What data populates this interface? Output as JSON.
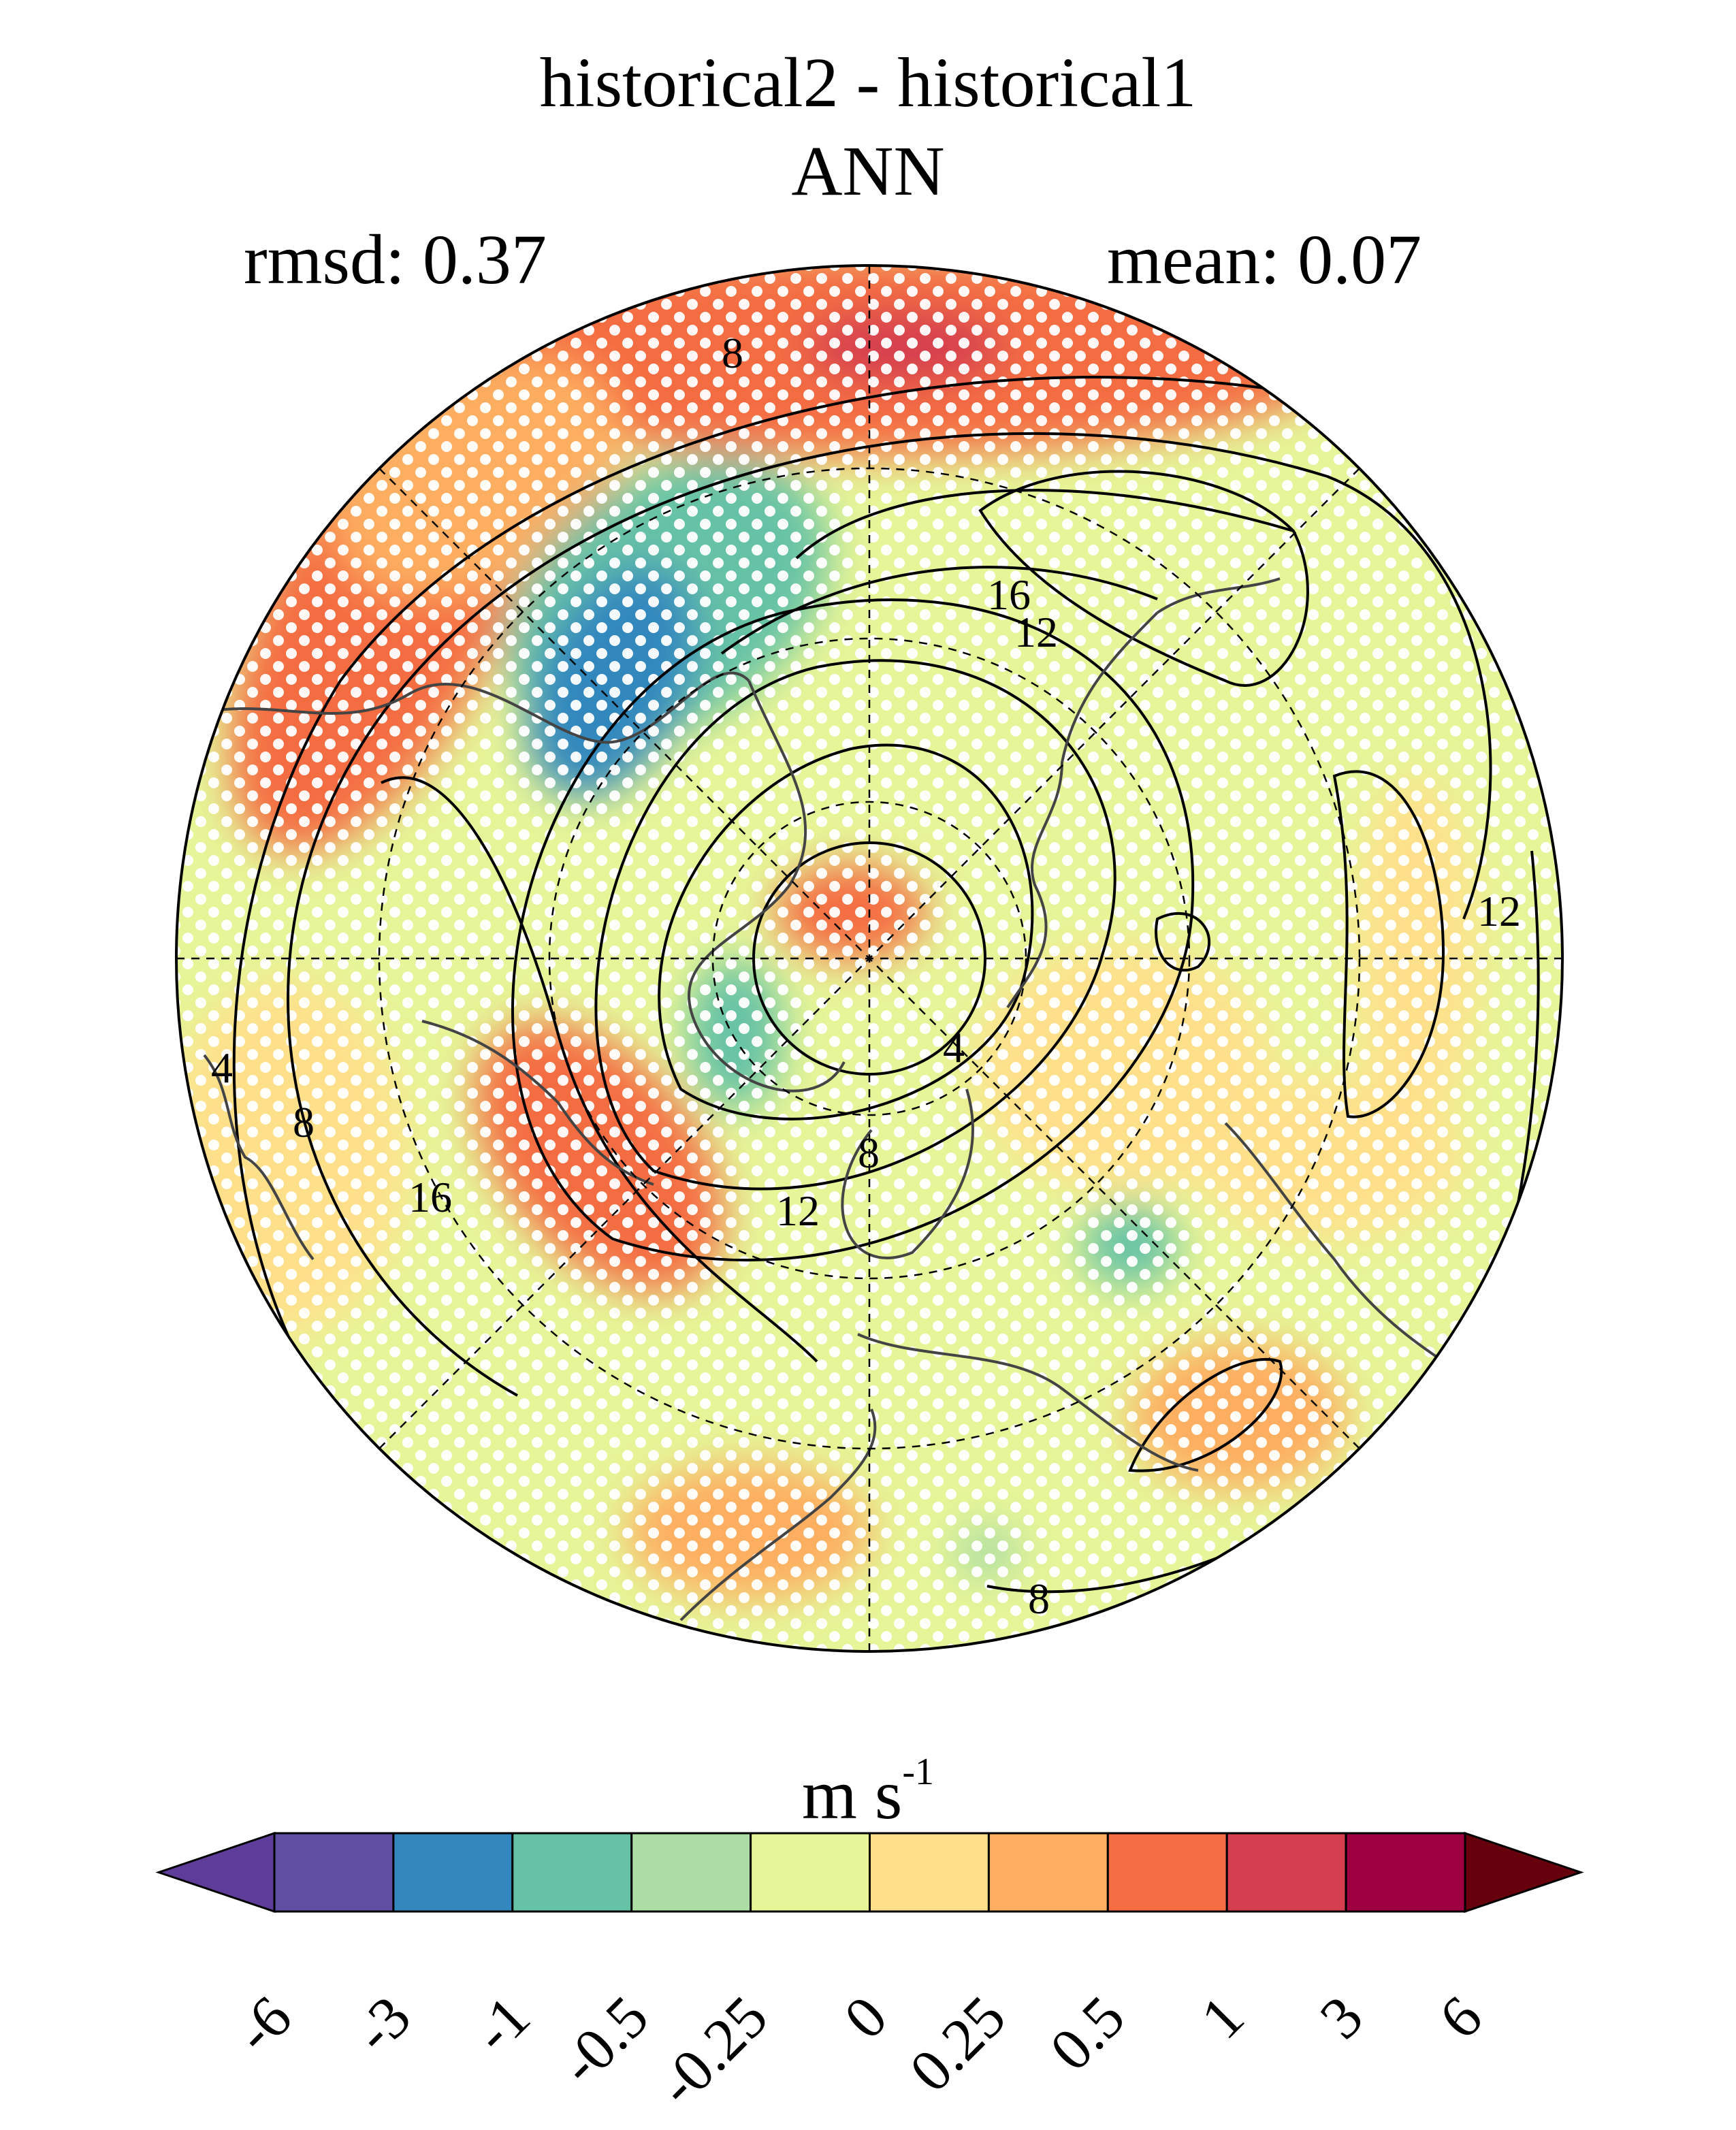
{
  "title": "historical2 - historical1",
  "season": "ANN",
  "rmsd_label": "rmsd: 0.37",
  "mean_label": "mean: 0.07",
  "colorbar": {
    "units_main": "m s",
    "units_exp": "-1",
    "ticks": [
      "-6",
      "-3",
      "-1",
      "-0.5",
      "-0.25",
      "0",
      "0.25",
      "0.5",
      "1",
      "3",
      "6"
    ],
    "colors": [
      "#5e3c99",
      "#5e4fa2",
      "#3288bd",
      "#66c2a5",
      "#abdda4",
      "#e6f598",
      "#fee08b",
      "#fdae61",
      "#f46d43",
      "#d53e4f",
      "#9e0142",
      "#67000d"
    ]
  },
  "map": {
    "projection": "north polar stereographic",
    "contour_labels": [
      "8",
      "16",
      "12",
      "4",
      "8",
      "12",
      "16",
      "8",
      "4",
      "12",
      "8"
    ],
    "stipple_color": "#ffffff",
    "coastline_color": "#444444"
  }
}
